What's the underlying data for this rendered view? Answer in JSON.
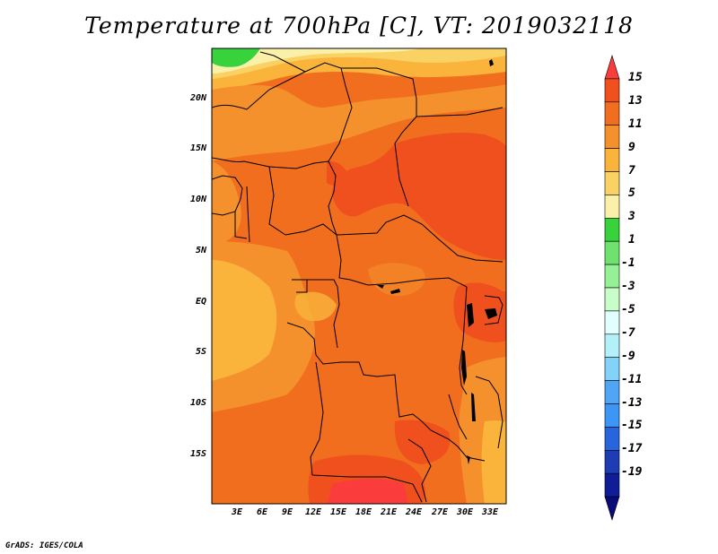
{
  "title": "Temperature at 700hPa [C], VT: 2019032118",
  "footer": "GrADS: IGES/COLA",
  "map": {
    "variable": "Temperature",
    "level": "700hPa",
    "units": "C",
    "valid_time": "2019032118",
    "lat_labels": [
      "20N",
      "15N",
      "10N",
      "5N",
      "EQ",
      "5S",
      "10S",
      "15S"
    ],
    "lon_labels": [
      "3E",
      "6E",
      "9E",
      "12E",
      "15E",
      "18E",
      "21E",
      "24E",
      "27E",
      "30E",
      "33E"
    ]
  },
  "colorbar": {
    "levels": [
      "15",
      "13",
      "11",
      "9",
      "7",
      "5",
      "3",
      "1",
      "-1",
      "-3",
      "-5",
      "-7",
      "-9",
      "-11",
      "-13",
      "-15",
      "-17",
      "-19"
    ],
    "colors": [
      "#fa3c3c",
      "#f0501e",
      "#f06e1e",
      "#f5912d",
      "#fab43c",
      "#fad264",
      "#faf0aa",
      "#37d23c",
      "#6ee16e",
      "#96f096",
      "#c8ffc8",
      "#e1ffff",
      "#b4f0fa",
      "#82d2fa",
      "#50a5f5",
      "#3c96f5",
      "#2864dc",
      "#1e3cb4",
      "#0f1e96",
      "#0a0a78"
    ]
  }
}
